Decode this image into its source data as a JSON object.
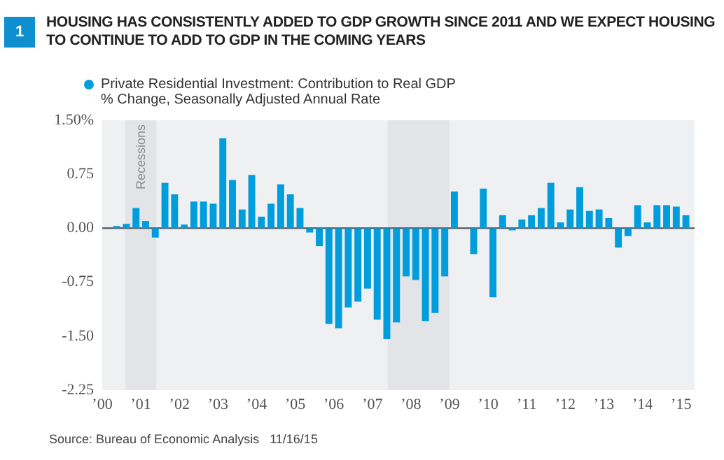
{
  "chart_data": {
    "type": "bar",
    "title": "HOUSING HAS CONSISTENTLY ADDED TO GDP GROWTH SINCE 2011 AND WE EXPECT HOUSING TO CONTINUE TO ADD TO GDP IN THE COMING YEARS",
    "subtitle": "% Change, Seasonally Adjusted Annual Rate",
    "annotations": [
      "1",
      "Source: Bureau of Economic Analysis   11/16/15"
    ],
    "x": [
      2000.375,
      2000.625,
      2000.875,
      2001.125,
      2001.375,
      2001.625,
      2001.875,
      2002.125,
      2002.375,
      2002.625,
      2002.875,
      2003.125,
      2003.375,
      2003.625,
      2003.875,
      2004.125,
      2004.375,
      2004.625,
      2004.875,
      2005.125,
      2005.375,
      2005.625,
      2005.875,
      2006.125,
      2006.375,
      2006.625,
      2006.875,
      2007.125,
      2007.375,
      2007.625,
      2007.875,
      2008.125,
      2008.375,
      2008.625,
      2008.875,
      2009.125,
      2009.375,
      2009.625,
      2009.875,
      2010.125,
      2010.375,
      2010.625,
      2010.875,
      2011.125,
      2011.375,
      2011.625,
      2011.875,
      2012.125,
      2012.375,
      2012.625,
      2012.875,
      2013.125,
      2013.375,
      2013.625,
      2013.875,
      2014.125,
      2014.375,
      2014.625,
      2014.875,
      2015.125
    ],
    "series": [
      {
        "name": "Private Residential Investment: Contribution to Real GDP",
        "color": "#009ddc",
        "values": [
          0.03,
          0.06,
          0.28,
          0.1,
          -0.13,
          0.63,
          0.47,
          0.05,
          0.37,
          0.37,
          0.34,
          1.25,
          0.67,
          0.26,
          0.74,
          0.16,
          0.34,
          0.61,
          0.47,
          0.28,
          -0.06,
          -0.25,
          -1.33,
          -1.39,
          -1.1,
          -1.02,
          -0.84,
          -1.27,
          -1.54,
          -1.31,
          -0.67,
          -0.72,
          -1.29,
          -1.18,
          -0.67,
          0.51,
          0,
          -0.36,
          0.55,
          -0.96,
          0.18,
          -0.03,
          0.12,
          0.18,
          0.28,
          0.63,
          0.08,
          0.26,
          0.57,
          0.24,
          0.26,
          0.14,
          -0.27,
          -0.11,
          0.32,
          0.08,
          0.32,
          0.32,
          0.3,
          0.18
        ]
      }
    ],
    "xlim": [
      2000,
      2015.35
    ],
    "xticks": [
      {
        "value": 2000,
        "label": "’00"
      },
      {
        "value": 2001,
        "label": "’01"
      },
      {
        "value": 2002,
        "label": "’02"
      },
      {
        "value": 2003,
        "label": "’03"
      },
      {
        "value": 2004,
        "label": "’04"
      },
      {
        "value": 2005,
        "label": "’05"
      },
      {
        "value": 2006,
        "label": "’06"
      },
      {
        "value": 2007,
        "label": "’07"
      },
      {
        "value": 2008,
        "label": "’08"
      },
      {
        "value": 2009,
        "label": "’09"
      },
      {
        "value": 2010,
        "label": "’10"
      },
      {
        "value": 2011,
        "label": "’11"
      },
      {
        "value": 2012,
        "label": "’12"
      },
      {
        "value": 2013,
        "label": "’13"
      },
      {
        "value": 2014,
        "label": "’14"
      },
      {
        "value": 2015,
        "label": "’15"
      }
    ],
    "ylim": [
      -2.25,
      1.5
    ],
    "yticks": [
      {
        "value": 1.5,
        "label": "1.50%"
      },
      {
        "value": 0.75,
        "label": "0.75"
      },
      {
        "value": 0,
        "label": "0.00"
      },
      {
        "value": -0.75,
        "label": "-0.75"
      },
      {
        "value": -1.5,
        "label": "-1.50"
      },
      {
        "value": -2.25,
        "label": "-2.25"
      }
    ],
    "bands": [
      {
        "axis": "x",
        "from": 2000.6,
        "to": 2001.4,
        "label": "Recessions",
        "color": "#e3e4e7"
      },
      {
        "axis": "x",
        "from": 2007.4,
        "to": 2009.0,
        "color": "#e3e4e7"
      }
    ],
    "ref_lines": [
      {
        "axis": "y",
        "value": 0,
        "color": "#555555"
      }
    ],
    "legend": "top left",
    "grid": false
  }
}
